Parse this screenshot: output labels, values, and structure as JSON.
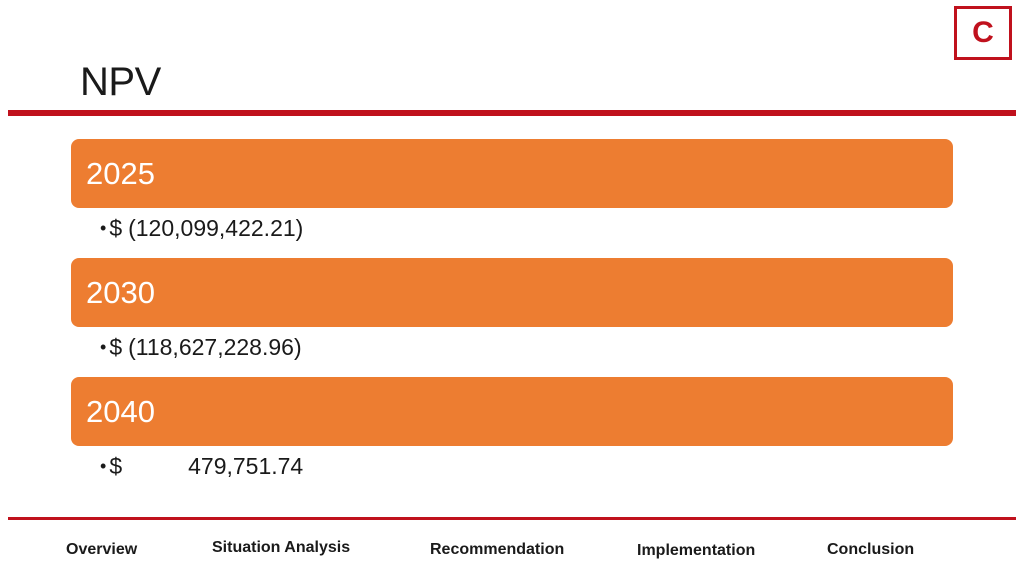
{
  "logo": {
    "letter": "C"
  },
  "slide": {
    "title": "NPV"
  },
  "entries": [
    {
      "year": "2025",
      "currency": "$",
      "amount": "(120,099,422.21)"
    },
    {
      "year": "2030",
      "currency": "$",
      "amount": "(118,627,228.96)"
    },
    {
      "year": "2040",
      "currency": "$",
      "amount": "479,751.74"
    }
  ],
  "bullet_char": "•",
  "nav": {
    "overview": "Overview",
    "situation_analysis": "Situation Analysis",
    "recommendation": "Recommendation",
    "implementation": "Implementation",
    "conclusion": "Conclusion"
  },
  "colors": {
    "accent_red": "#c0111d",
    "bar_orange": "#ed7d31"
  }
}
